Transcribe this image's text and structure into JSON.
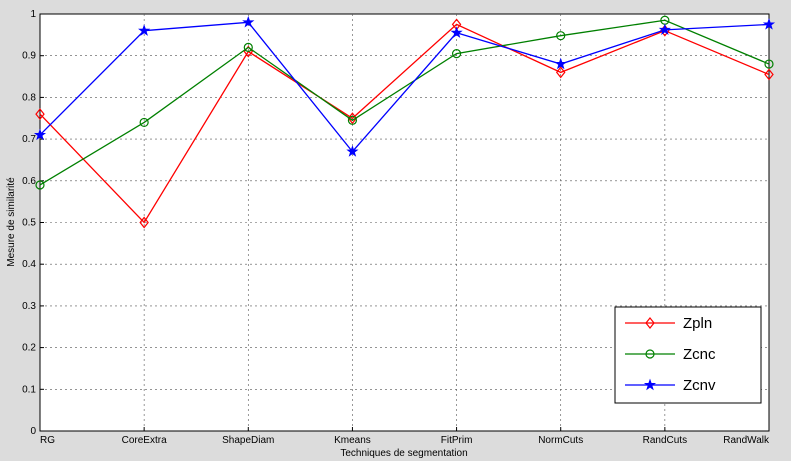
{
  "chart_data": {
    "type": "line",
    "title": "",
    "xlabel": "Techniques de segmentation",
    "ylabel": "Mesure de similarité",
    "categories": [
      "RG",
      "CoreExtra",
      "ShapeDiam",
      "Kmeans",
      "FitPrim",
      "NormCuts",
      "RandCuts",
      "RandWalk"
    ],
    "ylim": [
      0,
      1
    ],
    "yticks": [
      "0",
      "0.1",
      "0.2",
      "0.3",
      "0.4",
      "0.5",
      "0.6",
      "0.7",
      "0.8",
      "0.9",
      "1"
    ],
    "grid": true,
    "legend_position": "bottom-right",
    "series": [
      {
        "name": "Zpln",
        "color": "#ff0000",
        "marker": "diamond",
        "values": [
          0.76,
          0.5,
          0.91,
          0.75,
          0.975,
          0.86,
          0.96,
          0.855
        ]
      },
      {
        "name": "Zcnc",
        "color": "#008000",
        "marker": "circle",
        "values": [
          0.59,
          0.74,
          0.92,
          0.745,
          0.905,
          0.948,
          0.985,
          0.88
        ]
      },
      {
        "name": "Zcnv",
        "color": "#0000ff",
        "marker": "star",
        "values": [
          0.71,
          0.96,
          0.98,
          0.67,
          0.955,
          0.88,
          0.962,
          0.975
        ]
      }
    ]
  }
}
